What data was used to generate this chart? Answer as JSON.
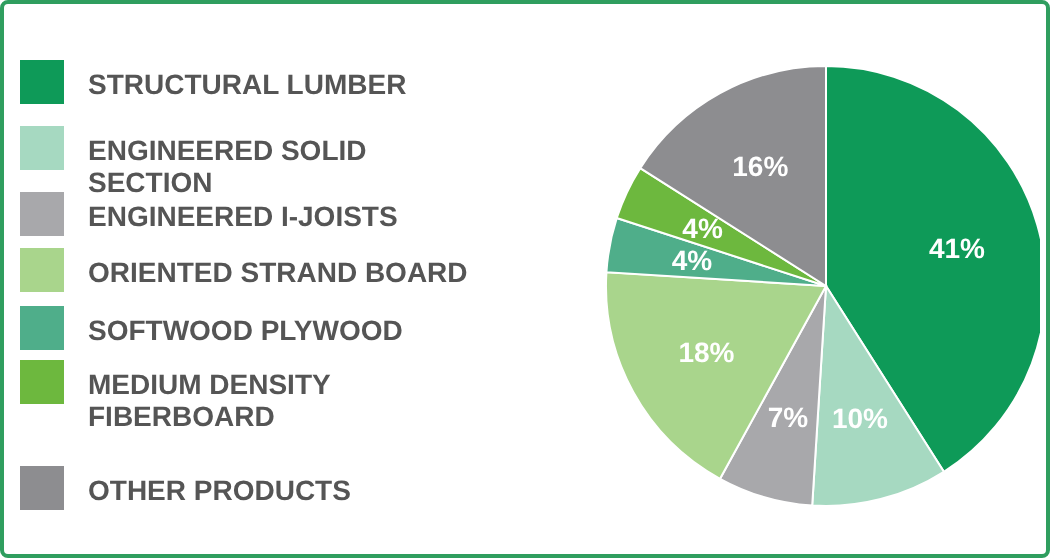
{
  "chart_data": {
    "type": "pie",
    "categories": [
      "STRUCTURAL LUMBER",
      "ENGINEERED SOLID SECTION",
      "ENGINEERED I-JOISTS",
      "ORIENTED STRAND BOARD",
      "SOFTWOOD PLYWOOD",
      "MEDIUM DENSITY FIBERBOARD",
      "OTHER PRODUCTS"
    ],
    "values": [
      41,
      10,
      7,
      18,
      4,
      4,
      16
    ],
    "colors": [
      "#0e9a58",
      "#a6d9c1",
      "#a8a8ab",
      "#a9d58c",
      "#4fae8a",
      "#6db83e",
      "#8d8d90"
    ],
    "value_labels": [
      "41%",
      "10%",
      "7%",
      "18%",
      "4%",
      "4%",
      "16%"
    ],
    "legend": "left"
  }
}
